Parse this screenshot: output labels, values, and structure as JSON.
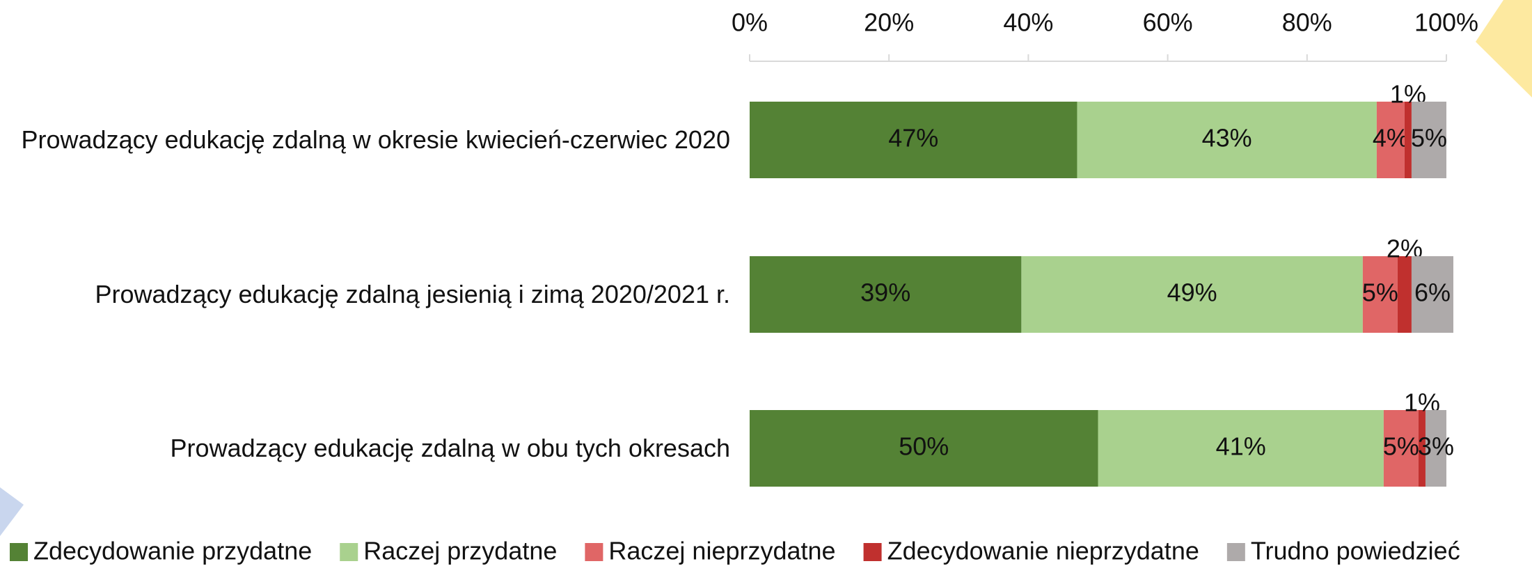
{
  "chart_data": {
    "type": "stacked_bar_horizontal",
    "categories": [
      "Prowadzący edukację zdalną w okresie kwiecień-czerwiec 2020",
      "Prowadzący edukację zdalną jesienią i zimą 2020/2021 r.",
      "Prowadzący edukację zdalną w obu tych okresach"
    ],
    "series": [
      {
        "name": "Zdecydowanie przydatne",
        "color": "#548235",
        "values": [
          47,
          39,
          50
        ],
        "value_labels": [
          "47%",
          "39%",
          "50%"
        ]
      },
      {
        "name": "Raczej przydatne",
        "color": "#a9d18e",
        "values": [
          43,
          49,
          41
        ],
        "value_labels": [
          "43%",
          "49%",
          "41%"
        ]
      },
      {
        "name": "Raczej nieprzydatne",
        "color": "#e06666",
        "values": [
          4,
          5,
          5
        ],
        "value_labels": [
          "4%",
          "5%",
          "5%"
        ]
      },
      {
        "name": "Zdecydowanie nieprzydatne",
        "color": "#c0302e",
        "values": [
          1,
          2,
          1
        ],
        "value_labels": [
          "1%",
          "2%",
          "1%"
        ]
      },
      {
        "name": "Trudno powiedzieć",
        "color": "#aeaaaa",
        "values": [
          5,
          6,
          3
        ],
        "value_labels": [
          "5%",
          "6%",
          "3%"
        ]
      }
    ],
    "xlim": [
      0,
      100
    ],
    "xticks": [
      {
        "value": 0,
        "label": "0%"
      },
      {
        "value": 20,
        "label": "20%"
      },
      {
        "value": 40,
        "label": "40%"
      },
      {
        "value": 60,
        "label": "60%"
      },
      {
        "value": 80,
        "label": "80%"
      },
      {
        "value": 100,
        "label": "100%"
      }
    ]
  }
}
